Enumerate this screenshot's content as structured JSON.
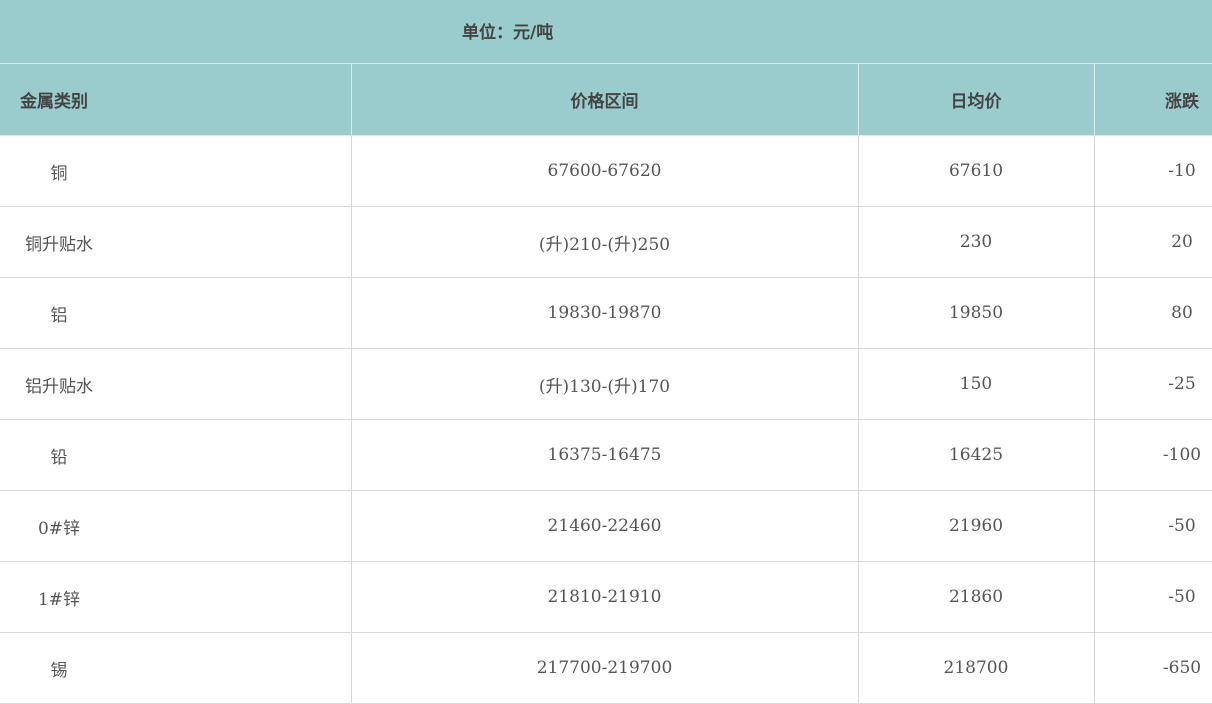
{
  "unit_label": "单位：元/吨",
  "columns": [
    "金属类别",
    "价格区间",
    "日均价",
    "涨跌"
  ],
  "rows": [
    {
      "metal": "铜",
      "range": "67600-67620",
      "avg": "67610",
      "change": "-10"
    },
    {
      "metal": "铜升贴水",
      "range": "(升)210-(升)250",
      "avg": "230",
      "change": "20"
    },
    {
      "metal": "铝",
      "range": "19830-19870",
      "avg": "19850",
      "change": "80"
    },
    {
      "metal": "铝升贴水",
      "range": "(升)130-(升)170",
      "avg": "150",
      "change": "-25"
    },
    {
      "metal": "铅",
      "range": "16375-16475",
      "avg": "16425",
      "change": "-100"
    },
    {
      "metal": "0#锌",
      "range": "21460-22460",
      "avg": "21960",
      "change": "-50"
    },
    {
      "metal": "1#锌",
      "range": "21810-21910",
      "avg": "21860",
      "change": "-50"
    },
    {
      "metal": "锡",
      "range": "217700-219700",
      "avg": "218700",
      "change": "-650"
    }
  ],
  "colors": {
    "header_bg": "#9acccd",
    "text": "#444444",
    "border": "#d9d9d9"
  }
}
